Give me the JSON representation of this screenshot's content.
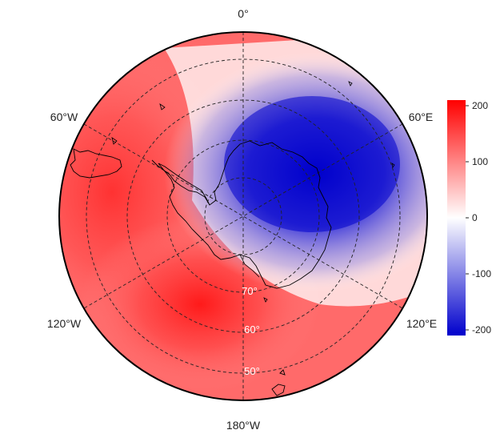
{
  "map": {
    "projection": "south-polar-stereographic",
    "longitude_labels": [
      "0°",
      "60°E",
      "120°E",
      "180°W",
      "120°W",
      "60°W"
    ],
    "latitude_labels": [
      "70°",
      "60°",
      "50°"
    ],
    "colorbar": {
      "ticks": [
        "200",
        "100",
        "0",
        "-100",
        "-200"
      ],
      "min": -210,
      "max": 210,
      "low_color": "#0000cc",
      "mid_color": "#ffffff",
      "high_color": "#ff0000"
    },
    "field_pattern": {
      "negative_center_lon_deg": 50,
      "positive_center_lon_deg": -150,
      "peak_value": 210
    }
  }
}
